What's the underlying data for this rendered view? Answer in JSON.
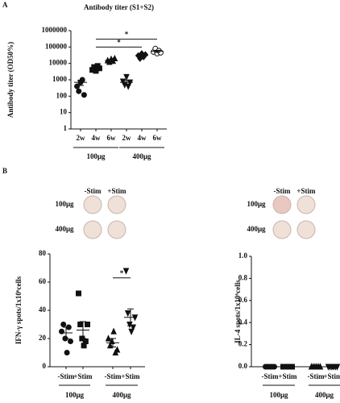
{
  "panel_labels": [
    "A",
    "B"
  ],
  "wells": [
    {
      "columns": [
        "-Stim",
        "+Stim"
      ],
      "rows": [
        "100μg",
        "400μg"
      ]
    },
    {
      "columns": [
        "-Stim",
        "+Stim"
      ],
      "rows": [
        "100μg",
        "400μg"
      ]
    }
  ],
  "chart_data": [
    {
      "type": "dotplot",
      "title": "Antibody titer (S1+S2)",
      "ylabel": "Antibody titer (OD50%)",
      "categories": [
        "2w",
        "4w",
        "6w",
        "2w",
        "4w",
        "6w"
      ],
      "groups": [
        "100μg",
        "400μg"
      ],
      "markers": [
        "circle",
        "square",
        "triangle",
        "triangle-down",
        "diamond",
        "circle-open"
      ],
      "values": [
        [
          400,
          200,
          700,
          1000,
          120
        ],
        [
          4000,
          6000,
          3500,
          7000,
          5000
        ],
        [
          15000,
          12000,
          18000,
          14000,
          20000
        ],
        [
          800,
          500,
          1500,
          400,
          700
        ],
        [
          30000,
          20000,
          40000,
          25000,
          35000
        ],
        [
          50000,
          80000,
          40000,
          60000,
          45000
        ]
      ],
      "means": [
        700,
        5000,
        15000,
        700,
        30000,
        55000
      ],
      "sems": [
        250,
        700,
        1500,
        200,
        4000,
        8000
      ],
      "log_scale": true,
      "ylim": [
        1,
        1000000
      ],
      "yticks": [
        1,
        10,
        100,
        1000,
        10000,
        100000,
        1000000
      ],
      "annotations": [
        "*",
        "*"
      ]
    },
    {
      "type": "dotplot",
      "ylabel": "IFN-γ spots/1x10⁶cells",
      "categories": [
        "-Stim",
        "+Stim",
        "-Stim",
        "+Stim"
      ],
      "groups": [
        "100μg",
        "400μg"
      ],
      "markers": [
        "circle",
        "square",
        "triangle",
        "triangle-down"
      ],
      "values": [
        [
          25,
          30,
          20,
          10,
          28,
          18
        ],
        [
          52,
          30,
          20,
          15,
          18,
          30
        ],
        [
          20,
          15,
          18,
          25,
          10,
          12
        ],
        [
          68,
          38,
          30,
          25,
          28,
          35
        ]
      ],
      "means": [
        24,
        26,
        17,
        35
      ],
      "sems": [
        4,
        6,
        3,
        6
      ],
      "ylim": [
        0,
        80
      ],
      "yticks": [
        0,
        20,
        40,
        60,
        80
      ],
      "annotations": [
        "*"
      ]
    },
    {
      "type": "dotplot",
      "ylabel": "IL-4 spots/1x10⁶cells",
      "categories": [
        "-Stim",
        "+Stim",
        "-Stim",
        "+Stim"
      ],
      "groups": [
        "100μg",
        "400μg"
      ],
      "markers": [
        "circle",
        "square",
        "triangle",
        "triangle-down"
      ],
      "values": [
        [
          0,
          0,
          0,
          0,
          0,
          0
        ],
        [
          0,
          0,
          0,
          0,
          0,
          0
        ],
        [
          0,
          0,
          0,
          0,
          0,
          0
        ],
        [
          0,
          0,
          0,
          0,
          0,
          0
        ]
      ],
      "means": [
        0,
        0,
        0,
        0
      ],
      "sems": [
        0,
        0,
        0,
        0
      ],
      "ylim": [
        0,
        1
      ],
      "yticks": [
        {
          "value": 0,
          "label": "0.0"
        },
        {
          "value": 0.2,
          "label": "0.2"
        },
        {
          "value": 0.4,
          "label": "0.4"
        },
        {
          "value": 0.6,
          "label": "0.6"
        },
        {
          "value": 0.8,
          "label": "0.8"
        },
        {
          "value": 1,
          "label": "1.0"
        }
      ]
    }
  ]
}
